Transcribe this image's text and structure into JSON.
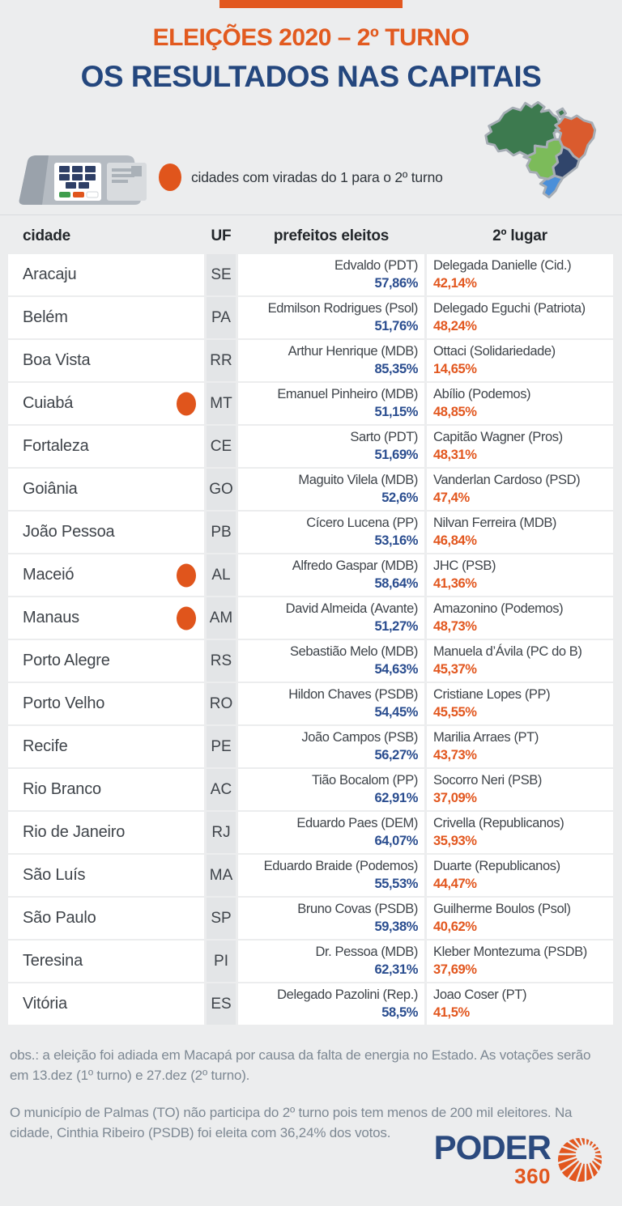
{
  "header": {
    "supertitle": "ELEIÇÕES 2020 – 2º TURNO",
    "title": "OS RESULTADOS NAS CAPITAIS"
  },
  "legend": {
    "text": "cidades com viradas do 1 para o 2º turno"
  },
  "icons": {
    "voting_machine": "urna-eletronica",
    "map": "mapa-do-brasil-por-regioes"
  },
  "chart_data": {
    "type": "table",
    "title": "Eleições 2020 – 2º turno: os resultados nas capitais",
    "columns": [
      "cidade",
      "UF",
      "prefeitos eleitos",
      "2º lugar"
    ],
    "rows": [
      {
        "city": "Aracaju",
        "uf": "SE",
        "turnaround": false,
        "winner": "Edvaldo (PDT)",
        "winner_pct": "57,86%",
        "runner_up": "Delegada Danielle (Cid.)",
        "runner_up_pct": "42,14%"
      },
      {
        "city": "Belém",
        "uf": "PA",
        "turnaround": false,
        "winner": "Edmilson Rodrigues (Psol)",
        "winner_pct": "51,76%",
        "runner_up": "Delegado Eguchi (Patriota)",
        "runner_up_pct": "48,24%"
      },
      {
        "city": "Boa Vista",
        "uf": "RR",
        "turnaround": false,
        "winner": "Arthur Henrique (MDB)",
        "winner_pct": "85,35%",
        "runner_up": "Ottaci (Solidariedade)",
        "runner_up_pct": "14,65%"
      },
      {
        "city": "Cuiabá",
        "uf": "MT",
        "turnaround": true,
        "winner": "Emanuel Pinheiro (MDB)",
        "winner_pct": "51,15%",
        "runner_up": "Abílio (Podemos)",
        "runner_up_pct": "48,85%"
      },
      {
        "city": "Fortaleza",
        "uf": "CE",
        "turnaround": false,
        "winner": "Sarto (PDT)",
        "winner_pct": "51,69%",
        "runner_up": "Capitão Wagner (Pros)",
        "runner_up_pct": "48,31%"
      },
      {
        "city": "Goiânia",
        "uf": "GO",
        "turnaround": false,
        "winner": "Maguito Vilela (MDB)",
        "winner_pct": "52,6%",
        "runner_up": "Vanderlan Cardoso (PSD)",
        "runner_up_pct": "47,4%"
      },
      {
        "city": "João Pessoa",
        "uf": "PB",
        "turnaround": false,
        "winner": "Cícero Lucena (PP)",
        "winner_pct": "53,16%",
        "runner_up": "Nilvan Ferreira (MDB)",
        "runner_up_pct": "46,84%"
      },
      {
        "city": "Maceió",
        "uf": "AL",
        "turnaround": true,
        "winner": "Alfredo Gaspar (MDB)",
        "winner_pct": "58,64%",
        "runner_up": "JHC (PSB)",
        "runner_up_pct": "41,36%"
      },
      {
        "city": "Manaus",
        "uf": "AM",
        "turnaround": true,
        "winner": "David Almeida (Avante)",
        "winner_pct": "51,27%",
        "runner_up": "Amazonino (Podemos)",
        "runner_up_pct": "48,73%"
      },
      {
        "city": "Porto Alegre",
        "uf": "RS",
        "turnaround": false,
        "winner": "Sebastião Melo (MDB)",
        "winner_pct": "54,63%",
        "runner_up": "Manuela d’Ávila (PC do B)",
        "runner_up_pct": "45,37%"
      },
      {
        "city": "Porto Velho",
        "uf": "RO",
        "turnaround": false,
        "winner": "Hildon Chaves (PSDB)",
        "winner_pct": "54,45%",
        "runner_up": "Cristiane Lopes (PP)",
        "runner_up_pct": "45,55%"
      },
      {
        "city": "Recife",
        "uf": "PE",
        "turnaround": false,
        "winner": "João Campos (PSB)",
        "winner_pct": "56,27%",
        "runner_up": "Marilia Arraes (PT)",
        "runner_up_pct": "43,73%"
      },
      {
        "city": "Rio Branco",
        "uf": "AC",
        "turnaround": false,
        "winner": "Tião Bocalom (PP)",
        "winner_pct": "62,91%",
        "runner_up": "Socorro Neri (PSB)",
        "runner_up_pct": "37,09%"
      },
      {
        "city": "Rio de Janeiro",
        "uf": "RJ",
        "turnaround": false,
        "winner": "Eduardo Paes (DEM)",
        "winner_pct": "64,07%",
        "runner_up": "Crivella (Republicanos)",
        "runner_up_pct": "35,93%"
      },
      {
        "city": "São Luís",
        "uf": "MA",
        "turnaround": false,
        "winner": "Eduardo Braide (Podemos)",
        "winner_pct": "55,53%",
        "runner_up": "Duarte (Republicanos)",
        "runner_up_pct": "44,47%"
      },
      {
        "city": "São Paulo",
        "uf": "SP",
        "turnaround": false,
        "winner": "Bruno Covas (PSDB)",
        "winner_pct": "59,38%",
        "runner_up": "Guilherme Boulos (Psol)",
        "runner_up_pct": "40,62%"
      },
      {
        "city": "Teresina",
        "uf": "PI",
        "turnaround": false,
        "winner": "Dr. Pessoa (MDB)",
        "winner_pct": "62,31%",
        "runner_up": "Kleber Montezuma (PSDB)",
        "runner_up_pct": "37,69%"
      },
      {
        "city": "Vitória",
        "uf": "ES",
        "turnaround": false,
        "winner": "Delegado Pazolini (Rep.)",
        "winner_pct": "58,5%",
        "runner_up": "Joao Coser (PT)",
        "runner_up_pct": "41,5%"
      }
    ]
  },
  "notes": [
    "obs.: a eleição foi adiada em Macapá por causa da falta de energia no Estado. As votações serão em 13.dez (1º turno) e 27.dez (2º turno).",
    "O município de Palmas (TO) não participa do 2º turno pois tem menos de 200 mil eleitores. Na cidade, Cinthia Ribeiro (PSDB) foi eleita com 36,24% dos votos."
  ],
  "logo": {
    "name": "PODER",
    "number": "360"
  },
  "colors": {
    "page_bg": "#ecedee",
    "accent_orange": "#e2571f",
    "title_navy": "#24477e",
    "winner_pct_blue": "#2a4d8f",
    "runnerup_pct_orange": "#e2571f",
    "text_dark": "#3f444a",
    "note_gray": "#7d8893",
    "uf_cell_bg": "#e3e5e7",
    "map_regions": {
      "norte": "#3d7a4f",
      "nordeste": "#da5b2e",
      "centro_oeste": "#7cbb5a",
      "sudeste": "#30456b",
      "sul": "#4b8fd9"
    }
  }
}
